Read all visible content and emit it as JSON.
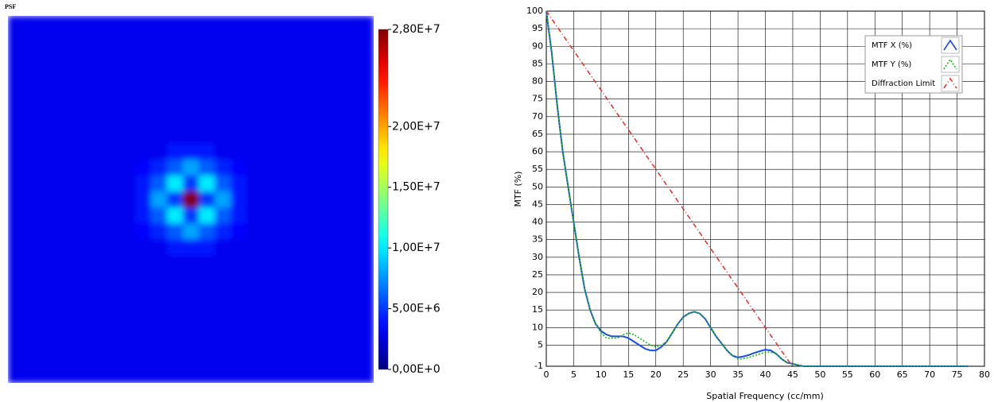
{
  "chart_data": [
    {
      "type": "heatmap",
      "title": "PSF",
      "zlim": [
        0,
        28000000
      ],
      "zticks": [
        {
          "value": 0,
          "label": "0,00E+0"
        },
        {
          "value": 5000000,
          "label": "5,00E+6"
        },
        {
          "value": 10000000,
          "label": "1,00E+7"
        },
        {
          "value": 15000000,
          "label": "1,50E+7"
        },
        {
          "value": 20000000,
          "label": "2,00E+7"
        },
        {
          "value": 28000000,
          "label": "2,80E+7"
        }
      ],
      "colormap": "jet",
      "z": [
        [
          3000000,
          3000000,
          3000000,
          3000000,
          3000000,
          3000000,
          3000000,
          3000000,
          3000000,
          3000000,
          3000000,
          3000000,
          3000000,
          3000000,
          3000000,
          3000000,
          3000000,
          3000000,
          3000000,
          3000000,
          3000000,
          3000000,
          3000000
        ],
        [
          3000000,
          3000000,
          3000000,
          3000000,
          3000000,
          3000000,
          3000000,
          3000000,
          3000000,
          3000000,
          3000000,
          3000000,
          3000000,
          3000000,
          3000000,
          3000000,
          3000000,
          3000000,
          3000000,
          3000000,
          3000000,
          3000000,
          3000000
        ],
        [
          3000000,
          3000000,
          3000000,
          3000000,
          3000000,
          3000000,
          3000000,
          3000000,
          3000000,
          3000000,
          3000000,
          3000000,
          3000000,
          3000000,
          3000000,
          3000000,
          3000000,
          3000000,
          3000000,
          3000000,
          3000000,
          3000000,
          3000000
        ],
        [
          3000000,
          3000000,
          3000000,
          3000000,
          3000000,
          3000000,
          3000000,
          3000000,
          3000000,
          3000000,
          3000000,
          3000000,
          3000000,
          3000000,
          3000000,
          3000000,
          3000000,
          3000000,
          3000000,
          3000000,
          3000000,
          3000000,
          3000000
        ],
        [
          3000000,
          3000000,
          3000000,
          3000000,
          3000000,
          3000000,
          3000000,
          3000000,
          3000000,
          3000000,
          3000000,
          3000000,
          3000000,
          3000000,
          3000000,
          3000000,
          3000000,
          3000000,
          3000000,
          3000000,
          3000000,
          3000000,
          3000000
        ],
        [
          3000000,
          3000000,
          3000000,
          3000000,
          3000000,
          3000000,
          3000000,
          3000000,
          3000000,
          3000000,
          3000000,
          3000000,
          3000000,
          3000000,
          3000000,
          3000000,
          3000000,
          3000000,
          3000000,
          3000000,
          3000000,
          3000000,
          3000000
        ],
        [
          3000000,
          3000000,
          3000000,
          3000000,
          3000000,
          3000000,
          3000000,
          3000000,
          3000000,
          3000000,
          3000000,
          3000000,
          3000000,
          3000000,
          3000000,
          3000000,
          3000000,
          3000000,
          3000000,
          3000000,
          3000000,
          3000000,
          3000000
        ],
        [
          3000000,
          3000000,
          3000000,
          3000000,
          3000000,
          3000000,
          3000000,
          3000000,
          3000000,
          3000000,
          3000000,
          3000000,
          3000000,
          3000000,
          3000000,
          3000000,
          3000000,
          3000000,
          3000000,
          3000000,
          3000000,
          3000000,
          3000000
        ],
        [
          3000000,
          3000000,
          3000000,
          3000000,
          3000000,
          3000000,
          3000000,
          3000000,
          3000000,
          3000000,
          4000000,
          4000000,
          4000000,
          3000000,
          3000000,
          3000000,
          3000000,
          3000000,
          3000000,
          3000000,
          3000000,
          3000000,
          3000000
        ],
        [
          3000000,
          3000000,
          3000000,
          3000000,
          3000000,
          3000000,
          3000000,
          3000000,
          3500000,
          4500000,
          6000000,
          8000000,
          6000000,
          4500000,
          3500000,
          3000000,
          3000000,
          3000000,
          3000000,
          3000000,
          3000000,
          3000000,
          3000000
        ],
        [
          3000000,
          3000000,
          3000000,
          3000000,
          3000000,
          3000000,
          3000000,
          3000000,
          4000000,
          6000000,
          10000000,
          5000000,
          10000000,
          6000000,
          4000000,
          3000000,
          3000000,
          3000000,
          3000000,
          3000000,
          3000000,
          3000000,
          3000000
        ],
        [
          3000000,
          3000000,
          3000000,
          3000000,
          3000000,
          3000000,
          3000000,
          3000000,
          4000000,
          8000000,
          5000000,
          28000000,
          5000000,
          8000000,
          4000000,
          3000000,
          3000000,
          3000000,
          3000000,
          3000000,
          3000000,
          3000000,
          3000000
        ],
        [
          3000000,
          3000000,
          3000000,
          3000000,
          3000000,
          3000000,
          3000000,
          3000000,
          4000000,
          6000000,
          10000000,
          5000000,
          10000000,
          6000000,
          4000000,
          3000000,
          3000000,
          3000000,
          3000000,
          3000000,
          3000000,
          3000000,
          3000000
        ],
        [
          3000000,
          3000000,
          3000000,
          3000000,
          3000000,
          3000000,
          3000000,
          3000000,
          3500000,
          4500000,
          6000000,
          8000000,
          6000000,
          4500000,
          3500000,
          3000000,
          3000000,
          3000000,
          3000000,
          3000000,
          3000000,
          3000000,
          3000000
        ],
        [
          3000000,
          3000000,
          3000000,
          3000000,
          3000000,
          3000000,
          3000000,
          3000000,
          3000000,
          3000000,
          4000000,
          4000000,
          4000000,
          3000000,
          3000000,
          3000000,
          3000000,
          3000000,
          3000000,
          3000000,
          3000000,
          3000000,
          3000000
        ],
        [
          3000000,
          3000000,
          3000000,
          3000000,
          3000000,
          3000000,
          3000000,
          3000000,
          3000000,
          3000000,
          3000000,
          3000000,
          3000000,
          3000000,
          3000000,
          3000000,
          3000000,
          3000000,
          3000000,
          3000000,
          3000000,
          3000000,
          3000000
        ],
        [
          3000000,
          3000000,
          3000000,
          3000000,
          3000000,
          3000000,
          3000000,
          3000000,
          3000000,
          3000000,
          3000000,
          3000000,
          3000000,
          3000000,
          3000000,
          3000000,
          3000000,
          3000000,
          3000000,
          3000000,
          3000000,
          3000000,
          3000000
        ],
        [
          3000000,
          3000000,
          3000000,
          3000000,
          3000000,
          3000000,
          3000000,
          3000000,
          3000000,
          3000000,
          3000000,
          3000000,
          3000000,
          3000000,
          3000000,
          3000000,
          3000000,
          3000000,
          3000000,
          3000000,
          3000000,
          3000000,
          3000000
        ],
        [
          3000000,
          3000000,
          3000000,
          3000000,
          3000000,
          3000000,
          3000000,
          3000000,
          3000000,
          3000000,
          3000000,
          3000000,
          3000000,
          3000000,
          3000000,
          3000000,
          3000000,
          3000000,
          3000000,
          3000000,
          3000000,
          3000000,
          3000000
        ],
        [
          3000000,
          3000000,
          3000000,
          3000000,
          3000000,
          3000000,
          3000000,
          3000000,
          3000000,
          3000000,
          3000000,
          3000000,
          3000000,
          3000000,
          3000000,
          3000000,
          3000000,
          3000000,
          3000000,
          3000000,
          3000000,
          3000000,
          3000000
        ],
        [
          3000000,
          3000000,
          3000000,
          3000000,
          3000000,
          3000000,
          3000000,
          3000000,
          3000000,
          3000000,
          3000000,
          3000000,
          3000000,
          3000000,
          3000000,
          3000000,
          3000000,
          3000000,
          3000000,
          3000000,
          3000000,
          3000000,
          3000000
        ],
        [
          3000000,
          3000000,
          3000000,
          3000000,
          3000000,
          3000000,
          3000000,
          3000000,
          3000000,
          3000000,
          3000000,
          3000000,
          3000000,
          3000000,
          3000000,
          3000000,
          3000000,
          3000000,
          3000000,
          3000000,
          3000000,
          3000000,
          3000000
        ],
        [
          3000000,
          3000000,
          3000000,
          3000000,
          3000000,
          3000000,
          3000000,
          3000000,
          3000000,
          3000000,
          3000000,
          3000000,
          3000000,
          3000000,
          3000000,
          3000000,
          3000000,
          3000000,
          3000000,
          3000000,
          3000000,
          3000000,
          3000000
        ]
      ]
    },
    {
      "type": "line",
      "xlabel": "Spatial Frequency (cc/mm)",
      "ylabel": "MTF (%)",
      "xlim": [
        0,
        80
      ],
      "xticks": [
        0,
        5,
        10,
        15,
        20,
        25,
        30,
        35,
        40,
        45,
        50,
        55,
        60,
        65,
        70,
        75,
        80
      ],
      "ylim": [
        -1,
        100
      ],
      "yticks": [
        -1,
        5,
        10,
        15,
        20,
        25,
        30,
        35,
        40,
        45,
        50,
        55,
        60,
        65,
        70,
        75,
        80,
        85,
        90,
        95,
        100
      ],
      "grid": true,
      "legend": "top-right",
      "x": [
        0,
        1,
        2,
        3,
        4,
        5,
        6,
        7,
        8,
        9,
        10,
        11,
        12,
        13,
        14,
        15,
        16,
        17,
        18,
        19,
        20,
        21,
        22,
        23,
        24,
        25,
        26,
        27,
        28,
        29,
        30,
        31,
        32,
        33,
        34,
        35,
        36,
        37,
        38,
        39,
        40,
        41,
        42,
        43,
        44,
        45,
        46,
        47,
        50,
        55,
        60,
        65,
        70,
        75,
        77
      ],
      "series": [
        {
          "name": "MTF X (%)",
          "color": "#1f4fd0",
          "style": "solid",
          "values": [
            100,
            88,
            73,
            60,
            50,
            40,
            30,
            21,
            15,
            11,
            9,
            8,
            7.5,
            7.5,
            7.5,
            7,
            6,
            5,
            4,
            3.5,
            3.5,
            4.5,
            6,
            8.5,
            11,
            13,
            14,
            14.5,
            14,
            12.5,
            10,
            7.5,
            5.5,
            3.5,
            2,
            1.5,
            1.8,
            2.2,
            2.8,
            3.3,
            3.7,
            3.5,
            2.5,
            1,
            0,
            -0.3,
            -0.7,
            -1,
            -1,
            -1,
            -1,
            -1,
            -1,
            -1,
            -1
          ]
        },
        {
          "name": "MTF Y (%)",
          "color": "#1fb51f",
          "style": "dotted",
          "values": [
            100,
            88,
            73,
            60,
            50,
            40,
            30,
            21,
            15,
            11,
            8.5,
            7,
            7,
            7,
            8,
            8.5,
            8,
            7,
            6,
            5,
            4.5,
            5,
            6,
            8.5,
            11,
            13,
            14,
            14.5,
            14,
            12.5,
            10,
            7.5,
            5.5,
            3.5,
            2,
            1,
            1.2,
            1.5,
            2,
            2.5,
            3,
            3,
            2.5,
            1,
            0,
            -0.3,
            -0.7,
            -1,
            -1,
            -1,
            -1,
            -1,
            -1,
            -1,
            -1
          ]
        },
        {
          "name": "Diffraction Limit",
          "color": "#d83a3a",
          "style": "dashdot",
          "values": [
            100,
            97.75,
            95.5,
            93.25,
            91,
            88.75,
            86.5,
            84.25,
            82,
            79.75,
            77.5,
            75.25,
            73,
            70.75,
            68.5,
            66.25,
            64,
            61.75,
            59.5,
            57.25,
            55,
            52.75,
            50.5,
            48.25,
            46,
            43.75,
            41.5,
            39.25,
            37,
            34.75,
            32.5,
            30.25,
            28,
            25.75,
            23.5,
            21.25,
            19,
            16.75,
            14.5,
            12.25,
            10,
            7.75,
            5.5,
            3.25,
            1,
            -1,
            null,
            null,
            null,
            null,
            null,
            null,
            null,
            null,
            null
          ]
        }
      ]
    }
  ]
}
